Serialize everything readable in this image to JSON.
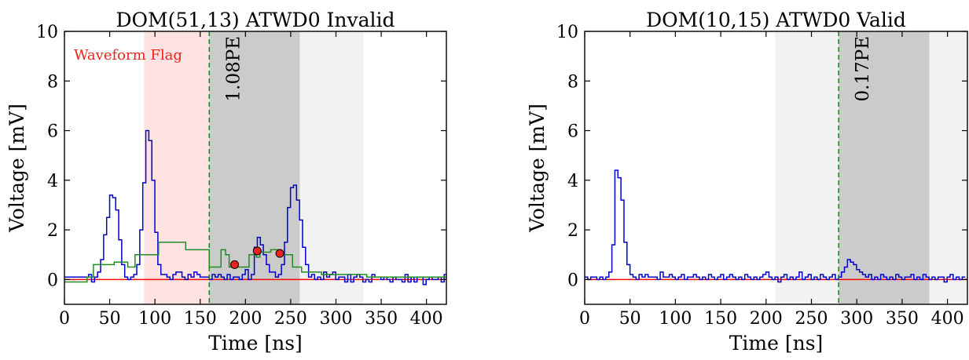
{
  "chart_data": [
    {
      "type": "line",
      "title": "DOM(51,13) ATWD0 Invalid",
      "xlabel": "Time [ns]",
      "ylabel": "Voltage [mV]",
      "xlim": [
        0,
        422
      ],
      "ylim": [
        -1,
        10
      ],
      "xticks": [
        0,
        50,
        100,
        150,
        200,
        250,
        300,
        350,
        400
      ],
      "yticks": [
        0,
        2,
        4,
        6,
        8,
        10
      ],
      "pe_label": "1.08PE",
      "flag_label": "Waveform Flag",
      "colors": {
        "waveform": "#0000cc",
        "fit": "#228b22",
        "baseline": "#ff0000",
        "flag_band": "#ff9a9a",
        "dark_band": "#a8a8a8",
        "light_band": "#e2e2e2",
        "marker": "#e8241c",
        "trigger": "#228b22"
      },
      "bands": [
        {
          "kind": "flag",
          "x0": 88,
          "x1": 160
        },
        {
          "kind": "dark",
          "x0": 160,
          "x1": 260
        },
        {
          "kind": "light",
          "x0": 260,
          "x1": 330
        }
      ],
      "trigger_x": 160,
      "markers": [
        {
          "x": 188,
          "y": 0.6
        },
        {
          "x": 213,
          "y": 1.15
        },
        {
          "x": 238,
          "y": 1.05
        }
      ],
      "series": [
        {
          "kind": "waveform",
          "step": 3.33,
          "y": [
            0.1,
            0.1,
            0.1,
            0.1,
            0.1,
            0.1,
            0.1,
            0.1,
            0.2,
            -0.1,
            0.1,
            0.3,
            0.8,
            1.8,
            2.5,
            3.4,
            3.3,
            2.8,
            1.6,
            0.6,
            0.1,
            0.0,
            0.1,
            0.2,
            0.6,
            2.0,
            3.9,
            6.0,
            5.6,
            4.0,
            1.9,
            0.6,
            0.2,
            0.2,
            0.1,
            0.0,
            0.2,
            0.3,
            0.3,
            0.1,
            0.0,
            0.2,
            0.1,
            0.3,
            0.2,
            0.1,
            0.1,
            0.1,
            0.0,
            0.2,
            0.1,
            0.2,
            0.1,
            0.0,
            0.2,
            0.0,
            0.1,
            0.1,
            0.0,
            0.2,
            0.4,
            0.0,
            0.2,
            1.3,
            1.7,
            1.4,
            1.0,
            0.6,
            0.3,
            0.3,
            0.1,
            0.2,
            0.6,
            1.5,
            2.9,
            3.7,
            3.8,
            3.2,
            2.4,
            1.3,
            0.6,
            0.1,
            0.2,
            0.0,
            0.1,
            0.0,
            0.3,
            0.1,
            0.2,
            0.3,
            0.0,
            0.1,
            0.1,
            -0.1,
            0.2,
            -0.1,
            0.1,
            0.2,
            0.1,
            -0.1,
            0.0,
            -0.1,
            0.2,
            0.1,
            0.1,
            0.0,
            0.1,
            0.0,
            -0.1,
            0.1,
            0.0,
            0.0,
            -0.1,
            0.2,
            -0.1,
            0.1,
            -0.1,
            0.1,
            0.1,
            -0.2,
            0.0,
            0.1,
            0.0,
            0.0,
            0.1,
            -0.1,
            0.2,
            -0.1,
            0.1,
            0.0,
            0.1,
            0.1,
            -0.2,
            0.2,
            0.0,
            0.0,
            0.2,
            0.0,
            0.0,
            0.3,
            0.0,
            -0.1,
            0.1,
            0.2,
            -0.1,
            0.1,
            0.2,
            0.3,
            0.0,
            -0.1,
            -0.1,
            0.1,
            0.2,
            0.0,
            0.1,
            0.2,
            -0.1,
            0.1,
            0.2,
            0.0,
            -0.1,
            0.2,
            0.1,
            0.1,
            0.2,
            0.2,
            0.1,
            0.0,
            0.2,
            0.0,
            -0.1,
            0.1,
            0.3,
            0.0,
            0.1,
            0.0,
            0.3,
            0.1,
            0.0,
            0.1,
            0.2,
            0.0,
            0.1,
            0.1,
            0.2,
            0.3,
            0.1,
            0.2,
            0.1,
            0.0,
            0.2,
            0.1,
            0.0,
            0.1,
            0.1,
            0.2,
            0.3,
            0.0,
            0.1,
            0.0,
            0.2,
            0.1,
            -0.1
          ]
        },
        {
          "kind": "fit",
          "steps": [
            [
              0,
              -0.1
            ],
            [
              25,
              0.1
            ],
            [
              32,
              0.6
            ],
            [
              52,
              0.6
            ],
            [
              55,
              0.7
            ],
            [
              70,
              0.5
            ],
            [
              78,
              1.0
            ],
            [
              100,
              1.0
            ],
            [
              104,
              1.5
            ],
            [
              130,
              1.5
            ],
            [
              134,
              1.2
            ],
            [
              155,
              1.2
            ],
            [
              160,
              0.5
            ],
            [
              170,
              0.5
            ],
            [
              173,
              1.2
            ],
            [
              178,
              1.0
            ],
            [
              182,
              0.5
            ],
            [
              200,
              0.5
            ],
            [
              204,
              1.0
            ],
            [
              212,
              0.9
            ],
            [
              216,
              1.1
            ],
            [
              228,
              1.2
            ],
            [
              236,
              1.0
            ],
            [
              248,
              1.0
            ],
            [
              252,
              0.5
            ],
            [
              262,
              0.3
            ],
            [
              280,
              0.3
            ],
            [
              284,
              0.2
            ],
            [
              330,
              0.2
            ],
            [
              334,
              0.1
            ],
            [
              360,
              0.1
            ],
            [
              422,
              0.1
            ]
          ]
        }
      ]
    },
    {
      "type": "line",
      "title": "DOM(10,15) ATWD0 Valid",
      "xlabel": "Time [ns]",
      "ylabel": "Voltage [mV]",
      "xlim": [
        0,
        422
      ],
      "ylim": [
        -1,
        10
      ],
      "xticks": [
        0,
        50,
        100,
        150,
        200,
        250,
        300,
        350,
        400
      ],
      "yticks": [
        0,
        2,
        4,
        6,
        8,
        10
      ],
      "pe_label": "0.17PE",
      "colors": {
        "waveform": "#0000cc",
        "baseline": "#ff0000",
        "dark_band": "#a8a8a8",
        "light_band": "#e2e2e2",
        "trigger": "#228b22"
      },
      "bands": [
        {
          "kind": "light",
          "x0": 210,
          "x1": 280
        },
        {
          "kind": "dark",
          "x0": 280,
          "x1": 380
        },
        {
          "kind": "light",
          "x0": 380,
          "x1": 422
        }
      ],
      "trigger_x": 280,
      "series": [
        {
          "kind": "waveform",
          "step": 3.33,
          "y": [
            0.1,
            0.0,
            0.1,
            0.1,
            0.0,
            0.1,
            0.0,
            0.1,
            0.3,
            1.4,
            4.4,
            4.1,
            3.2,
            1.5,
            0.6,
            0.2,
            0.1,
            0.0,
            0.2,
            0.1,
            0.2,
            0.1,
            0.1,
            0.1,
            0.0,
            0.3,
            0.1,
            0.1,
            0.2,
            0.1,
            0.0,
            0.1,
            0.2,
            0.0,
            0.1,
            0.1,
            0.2,
            0.1,
            0.0,
            0.1,
            0.0,
            0.2,
            0.1,
            0.0,
            0.1,
            0.2,
            0.0,
            0.1,
            0.2,
            0.1,
            0.0,
            0.1,
            0.0,
            0.2,
            0.1,
            0.0,
            0.1,
            0.0,
            0.1,
            0.2,
            0.3,
            0.1,
            0.0,
            0.1,
            -0.1,
            0.1,
            0.2,
            0.0,
            0.1,
            0.0,
            0.1,
            0.3,
            0.0,
            0.1,
            0.2,
            0.0,
            0.1,
            0.0,
            0.2,
            0.1,
            0.0,
            0.1,
            0.2,
            0.0,
            0.1,
            0.3,
            0.5,
            0.8,
            0.7,
            0.6,
            0.4,
            0.3,
            0.2,
            0.1,
            0.2,
            0.0,
            0.1,
            0.0,
            0.2,
            0.1,
            0.0,
            0.1,
            0.0,
            0.2,
            0.1,
            0.0,
            0.1,
            0.1,
            0.2,
            0.0,
            0.1,
            0.0,
            0.2,
            0.1,
            0.0,
            0.1,
            0.0,
            0.1,
            0.1,
            -0.1,
            0.1,
            0.2,
            0.0,
            0.1,
            0.0,
            0.1
          ]
        }
      ]
    }
  ]
}
